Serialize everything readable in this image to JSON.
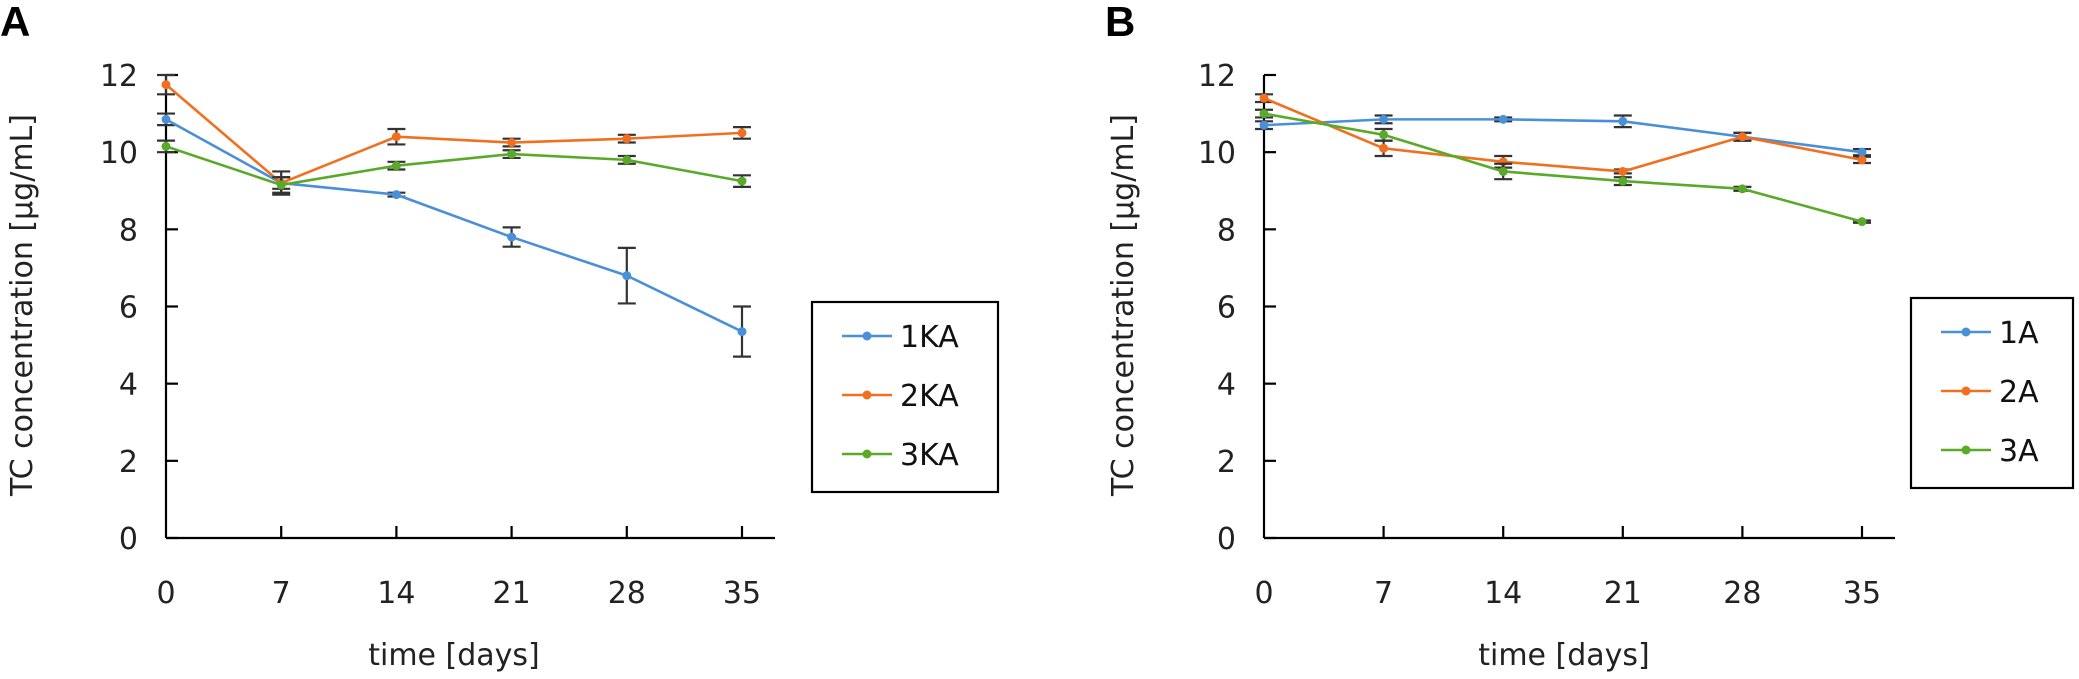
{
  "figure": {
    "panels": [
      "A",
      "B"
    ]
  },
  "chart_data": [
    {
      "panel": "A",
      "type": "line",
      "title": "",
      "xlabel": "time [days]",
      "ylabel": "TC concentration [µg/mL]",
      "x": [
        0,
        7,
        14,
        21,
        28,
        35
      ],
      "x_tick_labels": [
        "0",
        "7",
        "14",
        "21",
        "28",
        "35"
      ],
      "y_tick_labels": [
        "0",
        "2",
        "4",
        "6",
        "8",
        "10",
        "12"
      ],
      "y_ticks": [
        0,
        2,
        4,
        6,
        8,
        10,
        12
      ],
      "ylim": [
        0,
        12
      ],
      "xlim": [
        0,
        35
      ],
      "grid": false,
      "legend_position": "right",
      "series": [
        {
          "name": "1KA",
          "color": "#4a90d9",
          "values": [
            10.85,
            9.2,
            8.9,
            7.8,
            6.8,
            5.35
          ],
          "errors": [
            0.15,
            0.15,
            0.05,
            0.25,
            0.72,
            0.65
          ]
        },
        {
          "name": "2KA",
          "color": "#f07020",
          "values": [
            11.75,
            9.2,
            10.4,
            10.25,
            10.35,
            10.5
          ],
          "errors": [
            0.25,
            0.3,
            0.2,
            0.1,
            0.1,
            0.15
          ]
        },
        {
          "name": "3KA",
          "color": "#5aaa2a",
          "values": [
            10.15,
            9.15,
            9.65,
            9.95,
            9.8,
            9.25
          ],
          "errors": [
            0.15,
            0.2,
            0.1,
            0.1,
            0.1,
            0.15
          ]
        }
      ]
    },
    {
      "panel": "B",
      "type": "line",
      "title": "",
      "xlabel": "time [days]",
      "ylabel": "TC concentration [µg/mL]",
      "x": [
        0,
        7,
        14,
        21,
        28,
        35
      ],
      "x_tick_labels": [
        "0",
        "7",
        "14",
        "21",
        "28",
        "35"
      ],
      "y_tick_labels": [
        "0",
        "2",
        "4",
        "6",
        "8",
        "10",
        "12"
      ],
      "y_ticks": [
        0,
        2,
        4,
        6,
        8,
        10,
        12
      ],
      "ylim": [
        0,
        12
      ],
      "xlim": [
        0,
        35
      ],
      "grid": false,
      "legend_position": "right",
      "series": [
        {
          "name": "1A",
          "color": "#4a90d9",
          "values": [
            10.7,
            10.85,
            10.85,
            10.8,
            10.4,
            10.0
          ],
          "errors": [
            0.1,
            0.1,
            0.05,
            0.15,
            0.1,
            0.08
          ]
        },
        {
          "name": "2A",
          "color": "#f07020",
          "values": [
            11.4,
            10.1,
            9.75,
            9.5,
            10.4,
            9.8
          ],
          "errors": [
            0.1,
            0.2,
            0.15,
            0.05,
            0.1,
            0.08
          ]
        },
        {
          "name": "3A",
          "color": "#5aaa2a",
          "values": [
            11.0,
            10.45,
            9.5,
            9.25,
            9.05,
            8.2
          ],
          "errors": [
            0.1,
            0.15,
            0.2,
            0.1,
            0.05,
            0.03
          ]
        }
      ]
    }
  ]
}
